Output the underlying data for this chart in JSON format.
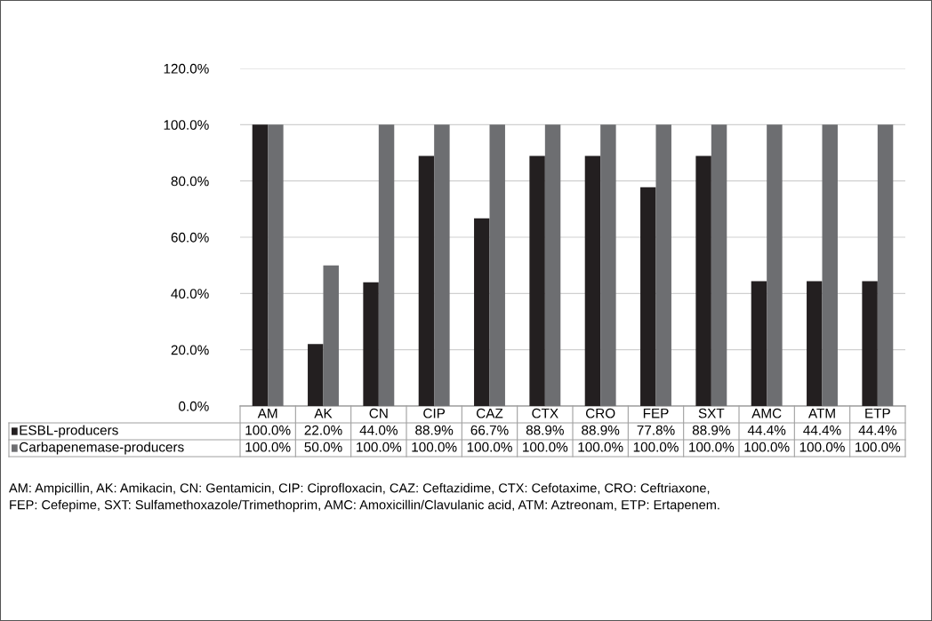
{
  "chart_data": {
    "type": "bar",
    "categories": [
      "AM",
      "AK",
      "CN",
      "CIP",
      "CAZ",
      "CTX",
      "CRO",
      "FEP",
      "SXT",
      "AMC",
      "ATM",
      "ETP"
    ],
    "series": [
      {
        "name": "ESBL-producers",
        "color": "#231f20",
        "values": [
          100,
          22,
          44,
          88.9,
          66.7,
          88.9,
          88.9,
          77.8,
          88.9,
          44.4,
          44.4,
          44.4
        ],
        "value_labels": [
          "100.0%",
          "22.0%",
          "44.0%",
          "88.9%",
          "66.7%",
          "88.9%",
          "88.9%",
          "77.8%",
          "88.9%",
          "44.4%",
          "44.4%",
          "44.4%"
        ]
      },
      {
        "name": "Carbapenemase-producers",
        "color": "#6d6e71",
        "values": [
          100,
          50,
          100,
          100,
          100,
          100,
          100,
          100,
          100,
          100,
          100,
          100
        ],
        "value_labels": [
          "100.0%",
          "50.0%",
          "100.0%",
          "100.0%",
          "100.0%",
          "100.0%",
          "100.0%",
          "100.0%",
          "100.0%",
          "100.0%",
          "100.0%",
          "100.0%"
        ]
      }
    ],
    "ylim": [
      0,
      120
    ],
    "yticks": [
      {
        "value": 0,
        "label": "0.0%"
      },
      {
        "value": 20,
        "label": "20.0%"
      },
      {
        "value": 40,
        "label": "40.0%"
      },
      {
        "value": 60,
        "label": "60.0%"
      },
      {
        "value": 80,
        "label": "80.0%"
      },
      {
        "value": 100,
        "label": "100.0%"
      },
      {
        "value": 120,
        "label": "120.0%"
      }
    ],
    "grid": "y",
    "legend": "bottom",
    "annotations": [
      "AM: Ampicillin, AK: Amikacin, CN: Gentamicin, CIP: Ciprofloxacin, CAZ: Ceftazidime, CTX: Cefotaxime, CRO: Ceftriaxone,\nFEP: Cefepime, SXT: Sulfamethoxazole/Trimethoprim, AMC: Amoxicillin/Clavulanic acid, ATM: Aztreonam, ETP: Ertapenem."
    ]
  }
}
